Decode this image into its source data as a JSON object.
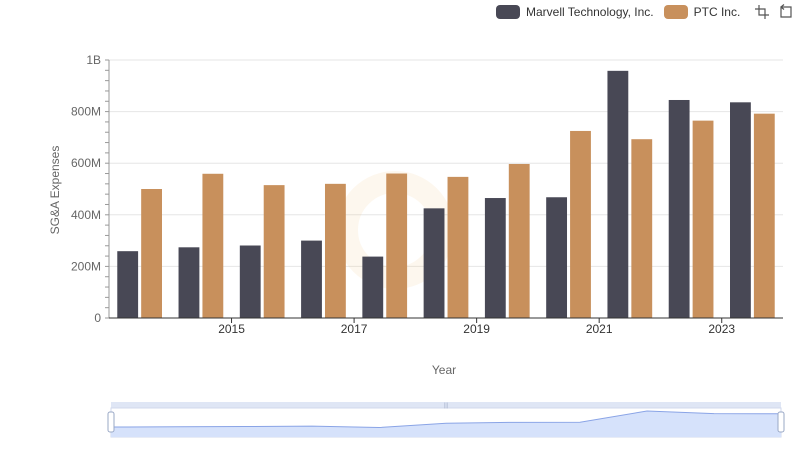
{
  "colors": {
    "marvell": "#484855",
    "ptc": "#c8905c",
    "grid": "#e6e6e6",
    "axis": "#333333",
    "zoom_fill": "#d6e2fb",
    "zoom_line": "#8aa4e6"
  },
  "legend": {
    "items": [
      {
        "label": "Marvell Technology, Inc."
      },
      {
        "label": "PTC Inc."
      }
    ],
    "tools": [
      "zoom-icon",
      "reset-icon"
    ]
  },
  "chart_data": {
    "type": "bar",
    "xlabel": "Year",
    "ylabel": "SG&A Expenses",
    "ylim": [
      0,
      1000000000
    ],
    "yticks": [
      {
        "value": 0,
        "label": "0"
      },
      {
        "value": 200000000,
        "label": "200M"
      },
      {
        "value": 400000000,
        "label": "400M"
      },
      {
        "value": 600000000,
        "label": "600M"
      },
      {
        "value": 800000000,
        "label": "800M"
      },
      {
        "value": 1000000000,
        "label": "1B"
      }
    ],
    "categories": [
      2014,
      2015,
      2016,
      2017,
      2018,
      2019,
      2020,
      2021,
      2022,
      2023,
      2024
    ],
    "xtick_labels": [
      "2015",
      "2017",
      "2019",
      "2021",
      "2023"
    ],
    "series": [
      {
        "name": "Marvell Technology, Inc.",
        "values": [
          259000000,
          274000000,
          281000000,
          300000000,
          238000000,
          425000000,
          465000000,
          468000000,
          958000000,
          845000000,
          836000000
        ]
      },
      {
        "name": "PTC Inc.",
        "values": [
          500000000,
          559000000,
          515000000,
          520000000,
          560000000,
          547000000,
          597000000,
          725000000,
          693000000,
          765000000,
          792000000
        ]
      }
    ],
    "grid": true,
    "legend_position": "top-right",
    "zoom_slider": true
  }
}
